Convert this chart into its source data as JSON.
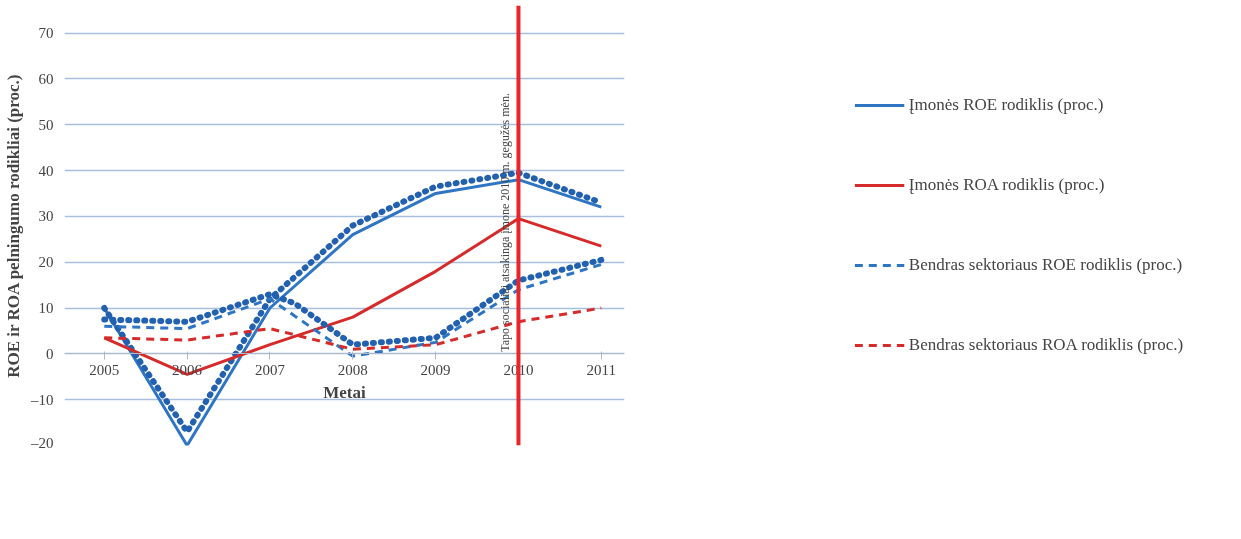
{
  "chart_data": {
    "type": "line",
    "xlabel": "Metai",
    "ylabel": "ROE ir ROA pelningumo rodikliai (proc.)",
    "x": [
      2005,
      2006,
      2007,
      2008,
      2009,
      2010,
      2011
    ],
    "xlim": [
      2004.52,
      2011.28
    ],
    "xticks": [
      2005,
      2006,
      2007,
      2008,
      2009,
      2010,
      2011
    ],
    "ylim": [
      -20,
      76
    ],
    "yticks": [
      {
        "value": -20,
        "label": "–20"
      },
      {
        "value": -10,
        "label": "–10"
      },
      0,
      10,
      20,
      30,
      40,
      50,
      60,
      70
    ],
    "grid": "y",
    "legend": "right",
    "marker": "none",
    "series": [
      {
        "name": "Įmonės ROE rodiklis (proc.)",
        "color": "#2e75c4",
        "line_style": "solid",
        "values": [
          10,
          -20,
          10,
          26,
          35,
          38,
          32
        ]
      },
      {
        "color": "#2260b0",
        "line_style": "dotted",
        "x": [
          2005,
          2006,
          2007,
          2008,
          2009,
          2010,
          2011
        ],
        "values": [
          10,
          -17,
          12,
          28,
          36.5,
          39.5,
          33
        ]
      },
      {
        "name": "Įmonės ROA rodiklis (proc.)",
        "color": "#d62b2b",
        "line_style": "solid",
        "values": [
          3.5,
          -4.5,
          2,
          8,
          18,
          29.5,
          23.5
        ]
      },
      {
        "name": "Bendras sektoriaus ROE rodiklis (proc.)",
        "color": "#2e75c4",
        "line_style": "dashed",
        "values": [
          6,
          5.5,
          12,
          -0.5,
          2.5,
          14,
          19.5
        ]
      },
      {
        "color": "#2260b0",
        "line_style": "dotted",
        "x": [
          2005,
          2006,
          2007,
          2007.3,
          2008,
          2009,
          2010,
          2011
        ],
        "values": [
          7.5,
          7,
          13,
          11,
          2,
          3.5,
          16,
          20.5
        ]
      },
      {
        "name": "Bendras sektoriaus ROA rodiklis (proc.)",
        "color": "#d62b2b",
        "line_style": "dashed",
        "values": [
          3.5,
          3,
          5.5,
          1,
          2,
          7,
          10
        ]
      }
    ],
    "ref_lines": [
      {
        "axis": "x",
        "value": 2010,
        "label": "Tapo socialiai atsakinga įmone 2010 m. gegužės mėn.",
        "color": "#e8262a"
      }
    ]
  }
}
